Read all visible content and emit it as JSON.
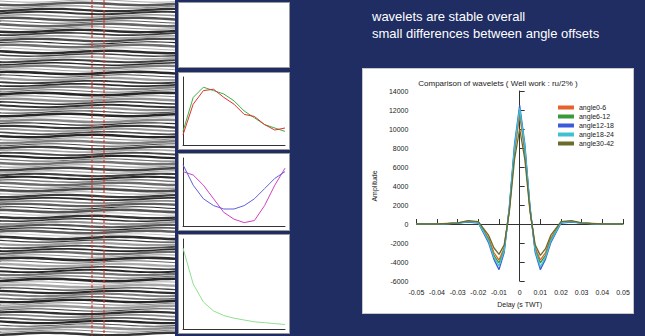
{
  "heading": [
    "wavelets are stable overall",
    "small differences between angle offsets"
  ],
  "chart_data": [
    {
      "type": "line",
      "title": "Comparison of wavelets ( Well work : ru/2% )",
      "x_label": "Delay (s TWT)",
      "y_label": "Amplitude",
      "x": [
        -0.05,
        -0.045,
        -0.04,
        -0.035,
        -0.03,
        -0.025,
        -0.02,
        -0.015,
        -0.0125,
        -0.01,
        -0.0075,
        -0.005,
        -0.0025,
        0,
        0.0025,
        0.005,
        0.0075,
        0.01,
        0.0125,
        0.015,
        0.02,
        0.025,
        0.03,
        0.035,
        0.04,
        0.045,
        0.05
      ],
      "series": [
        {
          "name": "angle0-6",
          "color": "#e8602c",
          "values": [
            0,
            0,
            0,
            50,
            100,
            300,
            200,
            -1500,
            -3000,
            -3800,
            -2500,
            1500,
            7500,
            11500,
            7500,
            1500,
            -2500,
            -3800,
            -3000,
            -1500,
            200,
            300,
            100,
            50,
            0,
            0,
            0
          ]
        },
        {
          "name": "angle6-12",
          "color": "#3a9a3a",
          "values": [
            0,
            0,
            0,
            50,
            100,
            250,
            150,
            -1700,
            -3300,
            -4100,
            -2700,
            1600,
            7900,
            12000,
            7900,
            1600,
            -2700,
            -4100,
            -3300,
            -1700,
            150,
            250,
            100,
            50,
            0,
            0,
            0
          ]
        },
        {
          "name": "angle12-18",
          "color": "#3b5bd9",
          "values": [
            0,
            0,
            0,
            40,
            100,
            200,
            100,
            -2000,
            -3700,
            -4800,
            -3000,
            1800,
            8400,
            12500,
            8400,
            1800,
            -3000,
            -4800,
            -3700,
            -2000,
            100,
            200,
            100,
            40,
            0,
            0,
            0
          ]
        },
        {
          "name": "angle18-24",
          "color": "#40c0d0",
          "values": [
            0,
            0,
            0,
            50,
            100,
            250,
            150,
            -1800,
            -3500,
            -4400,
            -2800,
            1700,
            8100,
            12200,
            8200,
            1700,
            -2800,
            -4500,
            -3500,
            -1800,
            150,
            250,
            100,
            50,
            0,
            0,
            0
          ]
        },
        {
          "name": "angle30-42",
          "color": "#6b6b2a",
          "values": [
            0,
            0,
            0,
            60,
            120,
            350,
            250,
            -1200,
            -2500,
            -3200,
            -2200,
            1300,
            6800,
            10000,
            6800,
            1300,
            -2200,
            -3300,
            -2600,
            -1200,
            250,
            350,
            120,
            60,
            0,
            0,
            0
          ]
        }
      ],
      "xlim": [
        -0.05,
        0.05
      ],
      "xticks": [
        -0.05,
        -0.04,
        -0.03,
        -0.02,
        -0.01,
        0,
        0.01,
        0.02,
        0.03,
        0.04,
        0.05
      ],
      "ylim": [
        -6000,
        14000
      ],
      "yticks": [
        -6000,
        -4000,
        -2000,
        0,
        2000,
        4000,
        6000,
        8000,
        10000,
        12000,
        14000
      ],
      "grid": false,
      "legend": "upper right"
    },
    {
      "type": "line",
      "x": [
        0,
        10,
        20,
        30,
        40,
        50,
        60,
        70,
        80,
        90,
        100
      ],
      "series": [
        {
          "color": "#3cb043",
          "values": [
            20,
            70,
            85,
            80,
            75,
            65,
            50,
            40,
            30,
            25,
            20
          ]
        },
        {
          "color": "#e03030",
          "values": [
            15,
            60,
            80,
            82,
            70,
            60,
            45,
            42,
            30,
            22,
            25
          ]
        }
      ],
      "xlim": [
        0,
        100
      ],
      "ylim": [
        0,
        100
      ],
      "tick_labels": false,
      "grid": false
    },
    {
      "type": "line",
      "x": [
        0,
        10,
        20,
        30,
        40,
        50,
        60,
        70,
        80,
        90,
        100
      ],
      "series": [
        {
          "color": "#d040c0",
          "values": [
            80,
            75,
            60,
            40,
            20,
            10,
            5,
            8,
            30,
            60,
            85
          ]
        },
        {
          "color": "#6060e0",
          "values": [
            90,
            60,
            40,
            30,
            25,
            25,
            30,
            40,
            55,
            70,
            80
          ]
        }
      ],
      "xlim": [
        0,
        100
      ],
      "ylim": [
        0,
        100
      ],
      "tick_labels": false,
      "grid": false
    },
    {
      "type": "line",
      "x": [
        0,
        10,
        20,
        30,
        40,
        50,
        60,
        70,
        80,
        90,
        100
      ],
      "series": [
        {
          "color": "#90e090",
          "values": [
            90,
            50,
            30,
            20,
            15,
            12,
            10,
            8,
            7,
            6,
            5
          ]
        }
      ],
      "xlim": [
        0,
        100
      ],
      "ylim": [
        0,
        100
      ],
      "tick_labels": false,
      "grid": false
    }
  ]
}
